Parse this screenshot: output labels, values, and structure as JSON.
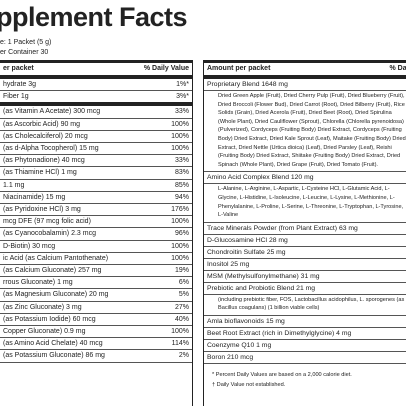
{
  "title": "pplement Facts",
  "serving": "e: 1 Packet (5 g)",
  "servings_per": "er Container 30",
  "left": {
    "header": [
      "er packet",
      "% Daily Value"
    ],
    "top_rows": [
      [
        "hydrate  3g",
        "1%*"
      ],
      [
        "Fiber  1g",
        "3%*"
      ]
    ],
    "rows": [
      [
        "(as Vitamin A Acetate) 300 mcg",
        "33%"
      ],
      [
        "(as Ascorbic Acid) 90 mg",
        "100%"
      ],
      [
        "(as Cholecalciferol) 20 mcg",
        "100%"
      ],
      [
        "(as d-Alpha Tocopherol) 15 mg",
        "100%"
      ],
      [
        "(as Phytonadione) 40 mcg",
        "33%"
      ],
      [
        "(as Thiamine HCl) 1 mg",
        "83%"
      ],
      [
        "1.1 mg",
        "85%"
      ],
      [
        "Niacinamide) 15 mg",
        "94%"
      ],
      [
        "(as Pyridoxine HCl) 3 mg",
        "176%"
      ],
      [
        "mcg DFE (97 mcg folic acid)",
        "100%"
      ],
      [
        "(as Cyanocobalamin) 2.3 mcg",
        "96%"
      ],
      [
        "D-Biotin) 30 mcg",
        "100%"
      ],
      [
        "ic Acid (as Calcium Pantothenate)",
        "100%"
      ],
      [
        "(as Calcium Gluconate) 257 mg",
        "19%"
      ],
      [
        "rrous Gluconate) 1 mg",
        "6%"
      ],
      [
        "(as Magnesium Gluconate) 20 mg",
        "5%"
      ],
      [
        "(as Zinc Gluconate) 3 mg",
        "27%"
      ],
      [
        "(as Potassium Iodide) 60 mcg",
        "40%"
      ],
      [
        "Copper Gluconate) 0.9 mg",
        "100%"
      ],
      [
        "(as Amino Acid Chelate) 40 mcg",
        "114%"
      ],
      [
        "(as Potassium Gluconate) 86 mg",
        "2%"
      ]
    ]
  },
  "right": {
    "header": [
      "Amount per packet",
      "% Daily V"
    ],
    "items": [
      {
        "label": "Proprietary Blend  1648 mg",
        "detail": "Dried Green Apple (Fruit), Dried Cherry Pulp (Fruit), Dried Blueberry (Fruit), Dried Broccoli (Flower Bud), Dried Carrot (Root), Dried Bilberry (Fruit), Rice Solids (Grain), Dried Acerola (Fruit), Dried Beet (Root), Dried Spirulina (Whole Plant), Dried Cauliflower (Sprout), Chlorella (Chlorella pyrenoidosa) (Pulverized), Cordyceps (Fruiting Body) Dried Extract, Cordyceps (Fruiting Body) Dried Extract, Dried Kale Sprout (Leaf), Maitake (Fruiting Body) Dried Extract, Dried Nettle (Urtica dioica) (Leaf), Dried Parsley (Leaf), Reishi (Fruiting Body) Dried Extract, Shiitake (Fruiting Body) Dried Extract, Dried Spinach (Whole Plant), Dried Grape (Fruit), Dried Tomato (Fruit)."
      },
      {
        "label": "Amino Acid Complex Blend  120 mg",
        "detail": "L-Alanine, L-Arginine, L-Aspartic, L-Cysteine HCl, L-Glutamic Acid, L-Glycine, L-Histidine, L-Isoleucine, L-Leucine, L-Lysine, L-Methionine, L-Phenylalanine, L-Proline, L-Serine, L-Threonine, L-Tryptophan, L-Tyrosine, L-Valine"
      },
      {
        "label": "Trace Minerals Powder (from Plant Extract)  63 mg"
      },
      {
        "label": "D-Glucosamine HCl  28 mg"
      },
      {
        "label": "Chondroitin Sulfate  25 mg"
      },
      {
        "label": "Inositol  25 mg"
      },
      {
        "label": "MSM (Methylsulfonylmethane)  31 mg"
      },
      {
        "label": "Prebiotic and Probiotic Blend  21 mg",
        "detail": "(including prebiotic fiber, FOS, Lactobacillus acidophilus, L. sporogenes (as Bacillus coagulans) (1 billion viable cells)"
      },
      {
        "label": "Amla bioflavonoids  15 mg"
      },
      {
        "label": "Beet Root Extract (rich in Dimethylglycine)  4 mg"
      },
      {
        "label": "Coenzyme Q10  1 mg"
      },
      {
        "label": "Boron  210 mcg"
      }
    ],
    "footnotes": [
      "* Percent Daily Values are based on a 2,000 calorie diet.",
      "† Daily Value not established."
    ]
  }
}
